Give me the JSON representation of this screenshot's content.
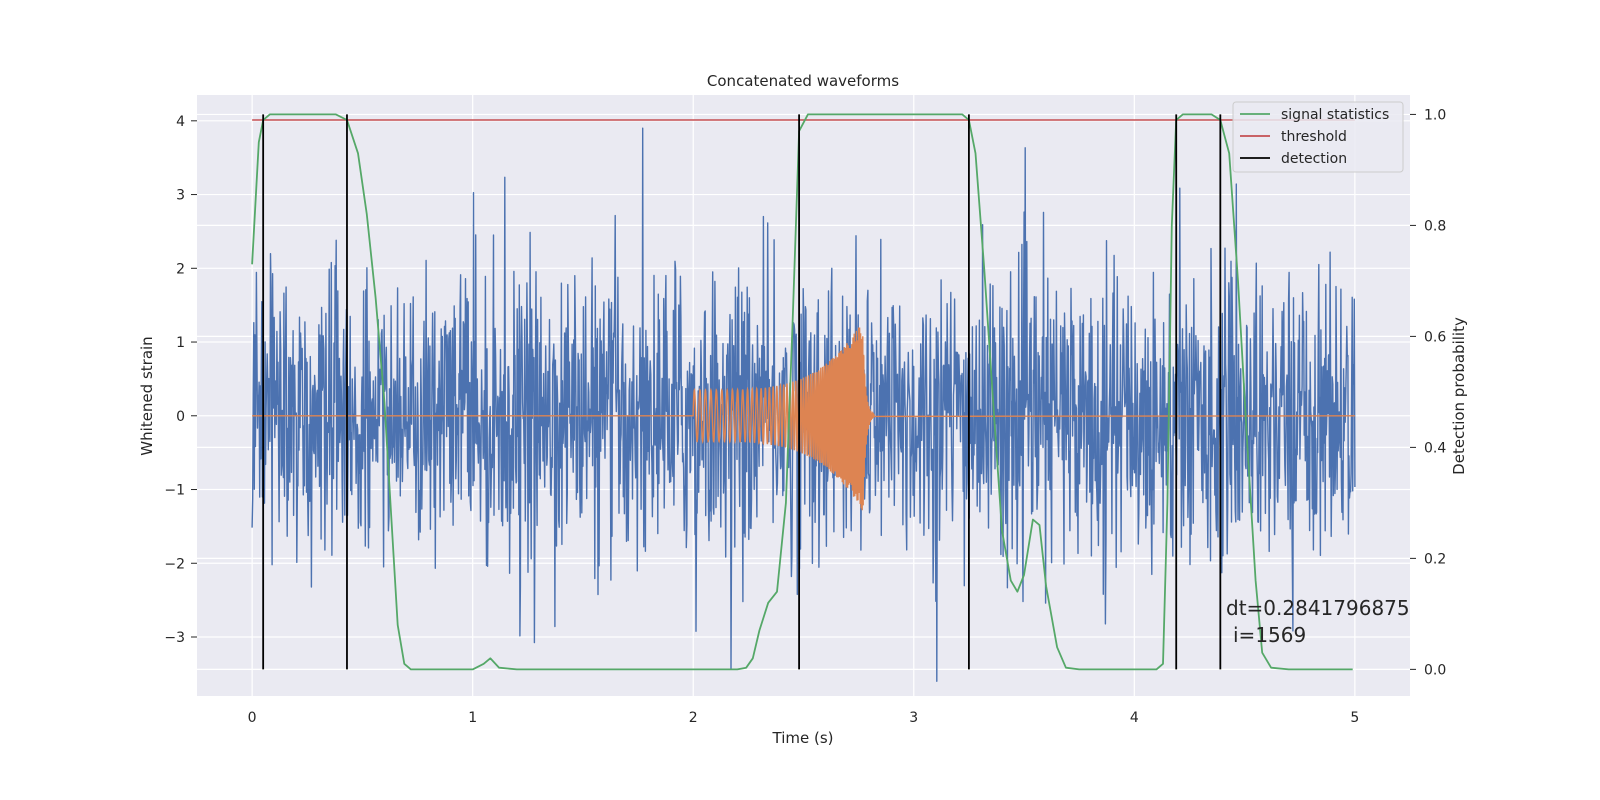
{
  "chart_data": {
    "type": "line",
    "title": "Concatenated waveforms",
    "xlabel": "Time (s)",
    "ylabel": "Whitened strain",
    "y2label": "Detection probability",
    "xlim": [
      -0.25,
      5.25
    ],
    "ylim": [
      -3.8,
      4.35
    ],
    "y2lim": [
      -0.048,
      1.035
    ],
    "x_ticks": [
      0,
      1,
      2,
      3,
      4,
      5
    ],
    "y_ticks": [
      -3,
      -2,
      -1,
      0,
      1,
      2,
      3,
      4
    ],
    "y2_ticks": [
      0.0,
      0.2,
      0.4,
      0.6,
      0.8,
      1.0
    ],
    "grid": true,
    "legend_position": "top-right",
    "legend": [
      "signal statistics",
      "threshold",
      "detection"
    ],
    "threshold": 0.99,
    "detections": [
      0.05,
      0.43,
      2.48,
      3.25,
      4.19,
      4.39
    ],
    "strain_noise": {
      "x_range": [
        0,
        5
      ],
      "samples": 2048,
      "envelope_typical": [
        -1.6,
        1.6
      ],
      "peak_range": [
        -3.6,
        3.9
      ]
    },
    "injected_signal": {
      "x_range": [
        2.0,
        2.77
      ],
      "amplitude_start": 0.35,
      "amplitude_peak": 1.3,
      "peak_time": 2.77,
      "ringdown_end": 2.82
    },
    "signal_statistics": [
      [
        0.0,
        0.73
      ],
      [
        0.03,
        0.95
      ],
      [
        0.05,
        0.99
      ],
      [
        0.08,
        1.0
      ],
      [
        0.38,
        1.0
      ],
      [
        0.43,
        0.99
      ],
      [
        0.48,
        0.93
      ],
      [
        0.52,
        0.82
      ],
      [
        0.56,
        0.67
      ],
      [
        0.6,
        0.48
      ],
      [
        0.63,
        0.28
      ],
      [
        0.66,
        0.08
      ],
      [
        0.69,
        0.01
      ],
      [
        0.72,
        0.0
      ],
      [
        1.0,
        0.0
      ],
      [
        1.05,
        0.01
      ],
      [
        1.08,
        0.02
      ],
      [
        1.12,
        0.003
      ],
      [
        1.2,
        0.0
      ],
      [
        2.2,
        0.0
      ],
      [
        2.24,
        0.003
      ],
      [
        2.27,
        0.02
      ],
      [
        2.3,
        0.07
      ],
      [
        2.34,
        0.12
      ],
      [
        2.38,
        0.14
      ],
      [
        2.42,
        0.3
      ],
      [
        2.45,
        0.62
      ],
      [
        2.48,
        0.97
      ],
      [
        2.52,
        1.0
      ],
      [
        3.22,
        1.0
      ],
      [
        3.25,
        0.99
      ],
      [
        3.28,
        0.93
      ],
      [
        3.32,
        0.72
      ],
      [
        3.36,
        0.48
      ],
      [
        3.4,
        0.25
      ],
      [
        3.44,
        0.16
      ],
      [
        3.47,
        0.14
      ],
      [
        3.5,
        0.17
      ],
      [
        3.54,
        0.27
      ],
      [
        3.57,
        0.26
      ],
      [
        3.6,
        0.15
      ],
      [
        3.65,
        0.04
      ],
      [
        3.69,
        0.003
      ],
      [
        3.75,
        0.0
      ],
      [
        4.1,
        0.0
      ],
      [
        4.13,
        0.01
      ],
      [
        4.15,
        0.3
      ],
      [
        4.17,
        0.8
      ],
      [
        4.19,
        0.99
      ],
      [
        4.22,
        1.0
      ],
      [
        4.35,
        1.0
      ],
      [
        4.39,
        0.99
      ],
      [
        4.43,
        0.93
      ],
      [
        4.47,
        0.7
      ],
      [
        4.51,
        0.42
      ],
      [
        4.55,
        0.16
      ],
      [
        4.58,
        0.03
      ],
      [
        4.62,
        0.003
      ],
      [
        4.7,
        0.0
      ],
      [
        4.99,
        0.0
      ]
    ],
    "annotation": [
      "dt=0.2841796875",
      "i=1569"
    ]
  },
  "colors": {
    "background": "#eaeaf2",
    "strain": "#4c72b0",
    "signal": "#dd8452",
    "statistics": "#55a868",
    "threshold": "#c44e52",
    "detection": "#000000",
    "grid": "#ffffff"
  }
}
